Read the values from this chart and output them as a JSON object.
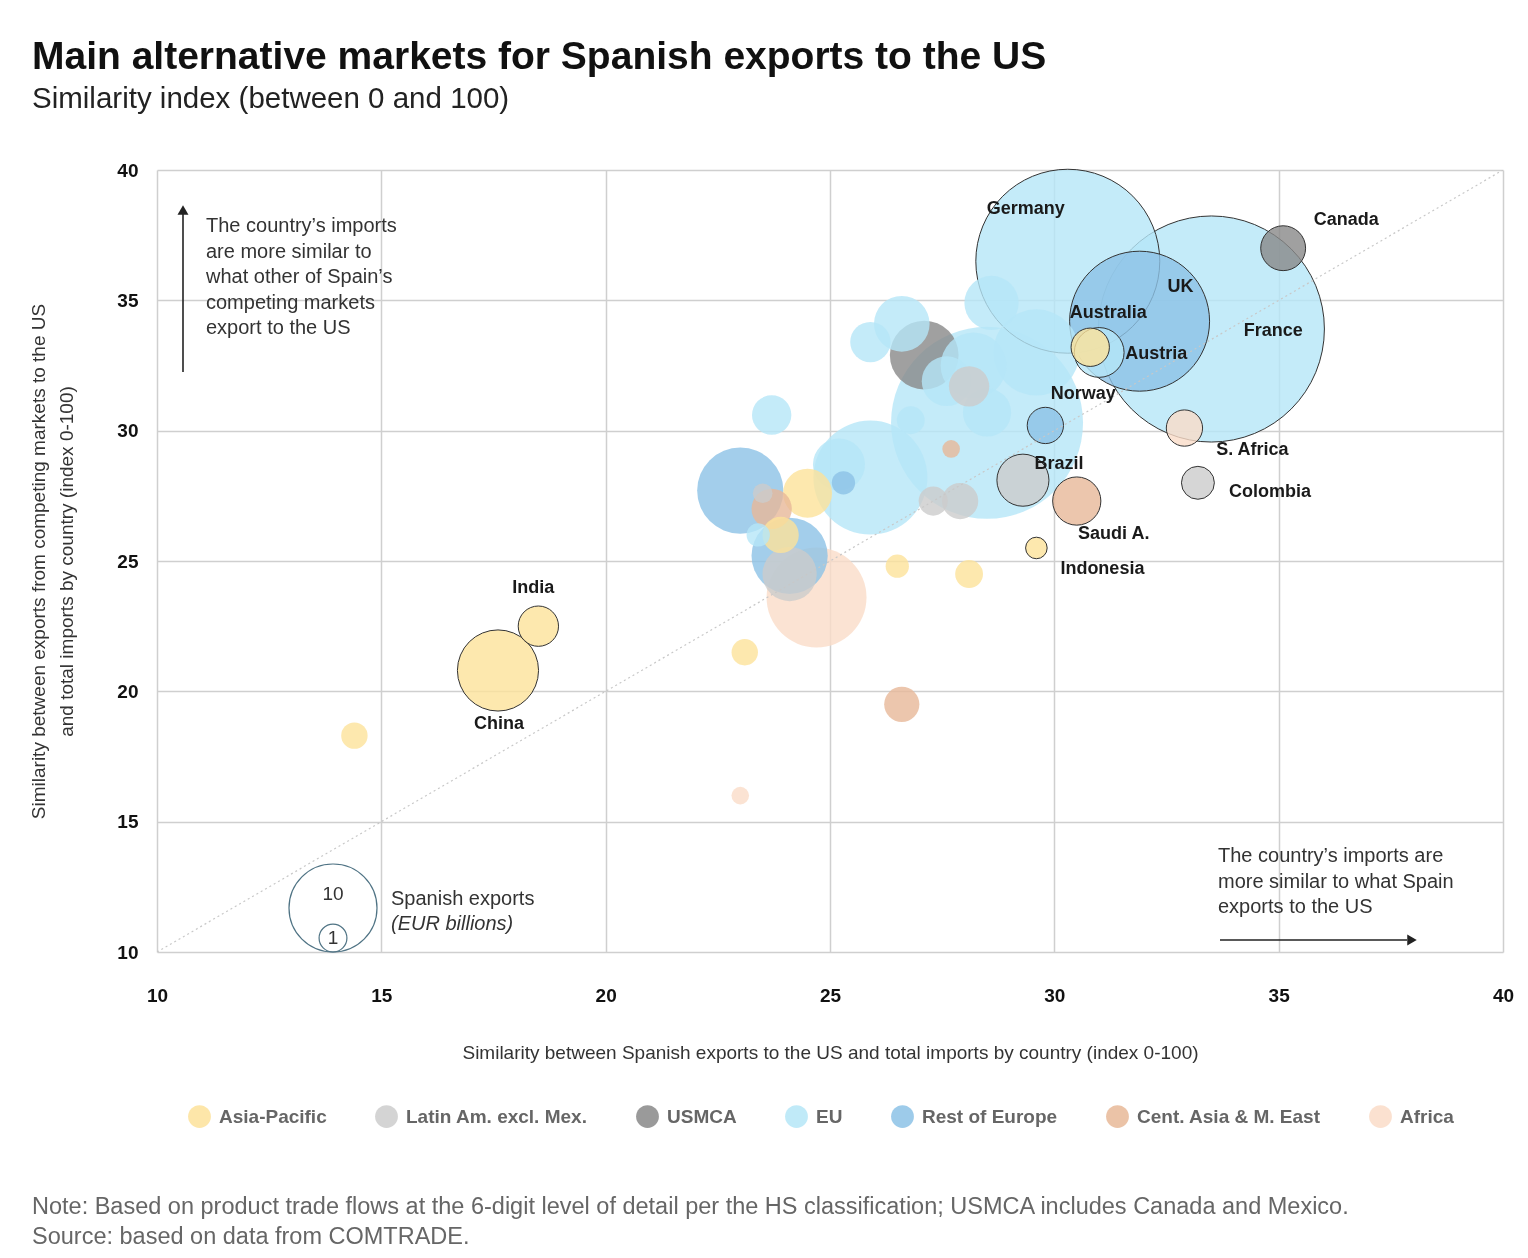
{
  "chart_data": {
    "type": "bubble",
    "title": "Main alternative markets for Spanish exports to the US",
    "subtitle": "Similarity index (between 0 and 100)",
    "xlabel": "Similarity between Spanish exports to the US and total imports by country (index 0-100)",
    "ylabel": "Similarity between exports from competing markets to the US and total imports by country (index 0-100)",
    "legend_title": "Spanish exports (EUR billions)",
    "size_legend": [
      10,
      1
    ],
    "xlim": [
      10,
      40
    ],
    "ylim": [
      10,
      40
    ],
    "xticks": [
      10,
      15,
      20,
      25,
      30,
      35,
      40
    ],
    "yticks": [
      10,
      15,
      20,
      25,
      30,
      35,
      40
    ],
    "grid": true,
    "legend": "bottom",
    "series": [
      {
        "name": "Asia-Pacific",
        "color": "#fde29a",
        "x": [
          17.6,
          18.5,
          14.4,
          23.1,
          26.5,
          28.1,
          29.6,
          24.5,
          30.8,
          23.9
        ],
        "values": [
          20.8,
          22.5,
          18.3,
          21.5,
          24.8,
          24.5,
          25.5,
          27.6,
          33.2,
          26.0
        ],
        "sizes": [
          8.5,
          2.1,
          0.9,
          0.9,
          0.7,
          1.0,
          0.6,
          3.1,
          1.9,
          1.7
        ]
      },
      {
        "name": "Latin Am. excl. Mex.",
        "color": "#cccccc",
        "x": [
          29.3,
          33.2,
          28.1,
          27.3,
          27.9,
          24.1,
          23.5
        ],
        "values": [
          28.1,
          28.0,
          31.7,
          27.3,
          27.3,
          24.5,
          27.6
        ],
        "sizes": [
          3.5,
          1.4,
          2.1,
          1.1,
          1.7,
          3.8,
          0.5
        ]
      },
      {
        "name": "USMCA",
        "color": "#888888",
        "x": [
          35.1,
          27.1
        ],
        "values": [
          37.0,
          32.9
        ],
        "sizes": [
          2.6,
          6.1
        ]
      },
      {
        "name": "EU",
        "color": "#b5e6f7",
        "x": [
          30.3,
          33.5,
          31.0,
          25.9,
          25.2,
          23.7,
          25.9,
          26.6,
          28.6,
          28.5,
          29.6,
          28.5,
          27.6,
          26.8,
          28.2,
          23.4
        ],
        "values": [
          36.5,
          33.9,
          33.0,
          28.2,
          28.7,
          30.6,
          33.4,
          34.1,
          34.9,
          30.3,
          33.0,
          30.7,
          31.9,
          30.4,
          32.5,
          26.0
        ],
        "sizes": [
          43.7,
          66.0,
          3.2,
          16.8,
          3.5,
          2.0,
          2.1,
          4.0,
          3.8,
          47.6,
          9.6,
          3.0,
          3.2,
          1.0,
          5.6,
          0.7
        ]
      },
      {
        "name": "Rest of Europe",
        "color": "#8cc2e6",
        "x": [
          31.9,
          29.8,
          24.1,
          23.0,
          25.3
        ],
        "values": [
          34.2,
          30.2,
          25.2,
          27.7,
          28.0
        ],
        "sizes": [
          25.3,
          1.7,
          7.5,
          9.6,
          0.7
        ]
      },
      {
        "name": "Cent. Asia & M. East",
        "color": "#e7b898",
        "x": [
          30.5,
          26.6,
          23.7,
          27.7
        ],
        "values": [
          27.3,
          19.5,
          27.0,
          29.3
        ],
        "sizes": [
          3.0,
          1.6,
          2.1,
          0.4
        ]
      },
      {
        "name": "Africa",
        "color": "#fadcc8",
        "x": [
          32.9,
          24.7,
          23.0
        ],
        "values": [
          30.1,
          23.6,
          16.0
        ],
        "sizes": [
          1.7,
          12.9,
          0.4
        ]
      },
      {
        "type": "line",
        "color": "#c8c8c8",
        "line_style": "dotted",
        "x": [
          10,
          40
        ],
        "values": [
          10,
          40
        ]
      }
    ],
    "annotations": [
      {
        "text": "Germany",
        "x": 30.3,
        "y": 36.5
      },
      {
        "text": "Canada",
        "x": 35.1,
        "y": 37.0
      },
      {
        "text": "UK",
        "x": 31.9,
        "y": 34.2
      },
      {
        "text": "Australia",
        "x": 30.8,
        "y": 33.2
      },
      {
        "text": "Austria",
        "x": 31.0,
        "y": 33.0
      },
      {
        "text": "France",
        "x": 33.5,
        "y": 33.9
      },
      {
        "text": "Norway",
        "x": 29.8,
        "y": 30.2
      },
      {
        "text": "S. Africa",
        "x": 32.9,
        "y": 30.1
      },
      {
        "text": "Brazil",
        "x": 29.3,
        "y": 28.1
      },
      {
        "text": "Colombia",
        "x": 33.2,
        "y": 28.0
      },
      {
        "text": "Saudi A.",
        "x": 30.5,
        "y": 27.3
      },
      {
        "text": "Indonesia",
        "x": 29.6,
        "y": 25.5
      },
      {
        "text": "India",
        "x": 18.5,
        "y": 22.5
      },
      {
        "text": "China",
        "x": 17.6,
        "y": 20.8
      },
      "The country’s imports are more similar to what other of Spain’s competing markets export to the US",
      "The country’s imports are more similar to what Spain exports to the US",
      "Note: Based on product trade flows at the 6-digit level of detail per the HS classification; USMCA includes Canada and Mexico.",
      "Source: based on data from COMTRADE."
    ]
  }
}
